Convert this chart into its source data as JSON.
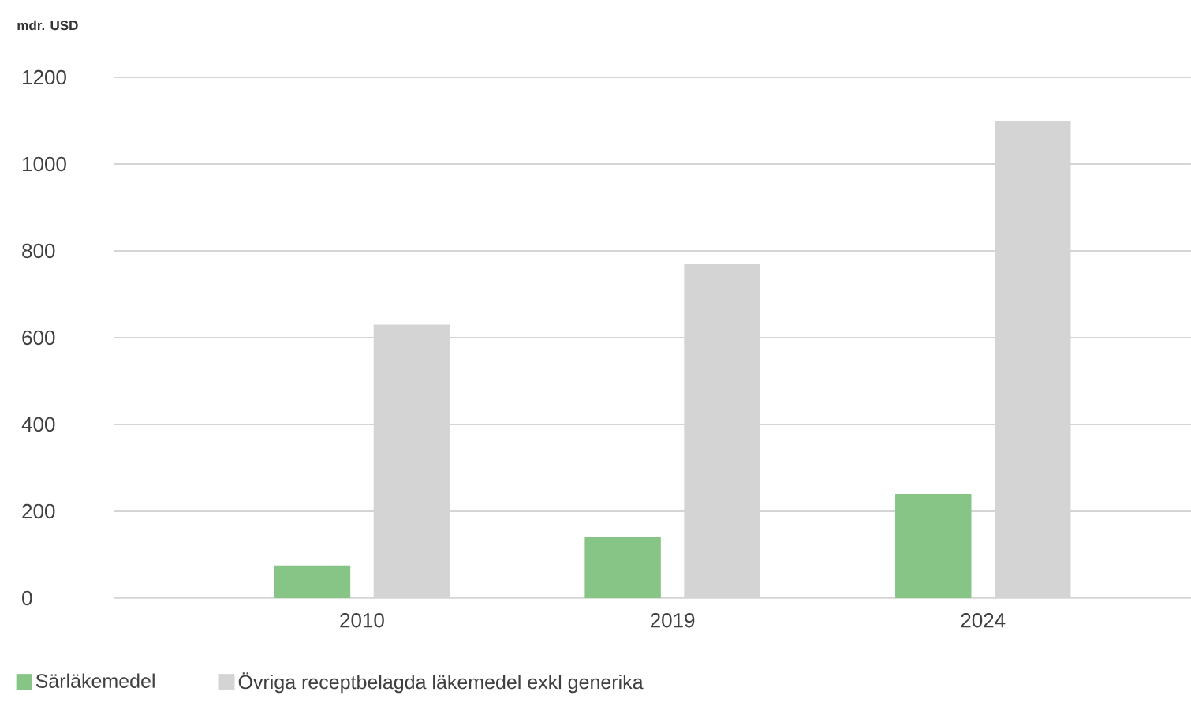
{
  "chart_data": {
    "type": "bar",
    "ylabel": "mdr. USD",
    "categories": [
      "2010",
      "2019",
      "2024"
    ],
    "series": [
      {
        "name": "Särläkemedel",
        "color": "#86c586",
        "values": [
          75,
          140,
          240
        ]
      },
      {
        "name": "Övriga receptbelagda läkemedel exkl generika",
        "color": "#d4d4d4",
        "values": [
          630,
          770,
          1100
        ]
      }
    ],
    "ylim": [
      0,
      1200
    ],
    "yticks": [
      0,
      200,
      400,
      600,
      800,
      1000,
      1200
    ],
    "grid": "y",
    "legend": "bottom left"
  }
}
